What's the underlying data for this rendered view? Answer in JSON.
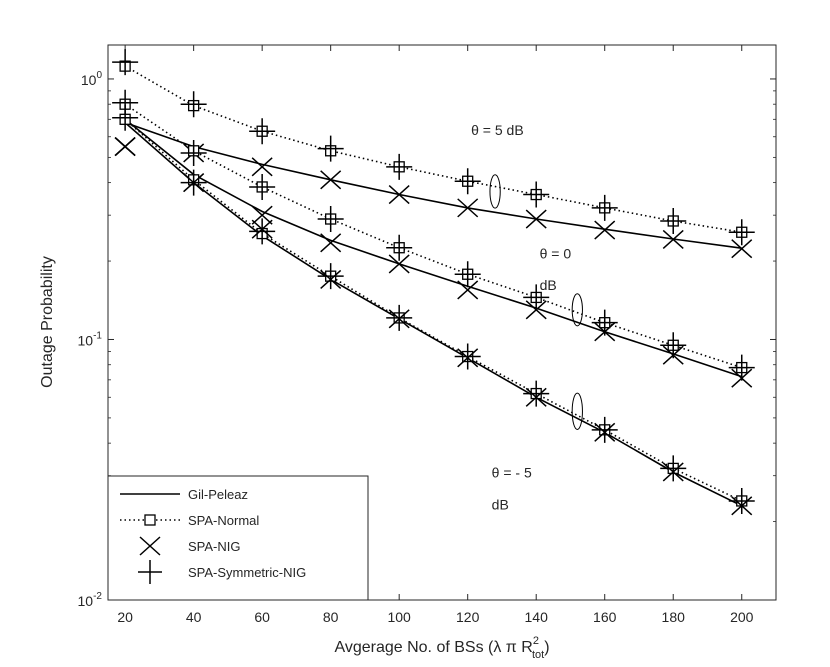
{
  "chart_data": {
    "type": "line",
    "title": "",
    "xlabel": "Avgerage No. of BSs (λ π R",
    "xlabel_sup": "2",
    "xlabel_sub": "tot",
    "xlabel_close": ")",
    "ylabel": "Outage Probability",
    "xlim": [
      15,
      210
    ],
    "ylim": [
      0.01,
      1.35
    ],
    "yscale": "log",
    "x_ticks": [
      20,
      40,
      60,
      80,
      100,
      120,
      140,
      160,
      180,
      200
    ],
    "x_tick_labels": [
      "20",
      "40",
      "60",
      "80",
      "100",
      "120",
      "140",
      "160",
      "180",
      "200"
    ],
    "y_ticks": [
      {
        "value": 1,
        "base": "10",
        "exp": "0"
      },
      {
        "value": 0.1,
        "base": "10",
        "exp": "-1"
      },
      {
        "value": 0.01,
        "base": "10",
        "exp": "-2"
      }
    ],
    "x": [
      20,
      40,
      60,
      80,
      100,
      120,
      140,
      160,
      180,
      200
    ],
    "groups": [
      {
        "name": "θ = 5 dB",
        "gil_peleaz": [
          0.68,
          0.55,
          0.47,
          0.41,
          0.36,
          0.32,
          0.29,
          0.265,
          0.243,
          0.224
        ],
        "spa_normal": [
          1.12,
          0.79,
          0.63,
          0.53,
          0.46,
          0.405,
          0.36,
          0.32,
          0.285,
          0.258
        ],
        "spa_nig": [
          0.55,
          0.52,
          0.46,
          0.41,
          0.36,
          0.32,
          0.29,
          0.263,
          0.242,
          0.223
        ],
        "spa_symmetric_nig": [
          1.16,
          0.8,
          0.63,
          0.54,
          0.46,
          0.405,
          0.36,
          0.32,
          0.285,
          0.258
        ]
      },
      {
        "name": "θ = 0 dB",
        "gil_peleaz": [
          0.7,
          0.43,
          0.31,
          0.24,
          0.195,
          0.16,
          0.132,
          0.107,
          0.088,
          0.072
        ],
        "spa_normal": [
          0.8,
          0.53,
          0.385,
          0.29,
          0.225,
          0.178,
          0.145,
          0.116,
          0.095,
          0.078
        ],
        "spa_nig": [
          0.55,
          0.4,
          0.3,
          0.235,
          0.195,
          0.155,
          0.13,
          0.107,
          0.087,
          0.071
        ],
        "spa_symmetric_nig": [
          0.81,
          0.52,
          0.385,
          0.29,
          0.225,
          0.178,
          0.145,
          0.116,
          0.095,
          0.078
        ]
      },
      {
        "name": "θ = - 5 dB",
        "gil_peleaz": [
          0.68,
          0.4,
          0.25,
          0.17,
          0.12,
          0.085,
          0.06,
          0.044,
          0.031,
          0.023
        ],
        "spa_normal": [
          0.7,
          0.41,
          0.255,
          0.175,
          0.121,
          0.086,
          0.062,
          0.045,
          0.032,
          0.024
        ],
        "spa_nig": [
          0.55,
          0.4,
          0.265,
          0.17,
          0.12,
          0.085,
          0.06,
          0.044,
          0.031,
          0.023
        ],
        "spa_symmetric_nig": [
          0.71,
          0.4,
          0.26,
          0.175,
          0.121,
          0.086,
          0.062,
          0.045,
          0.032,
          0.024
        ]
      }
    ],
    "annotations": [
      {
        "text": "θ = 5 dB",
        "x": 121,
        "y": 0.61
      },
      {
        "text": "θ = 0",
        "x": 141,
        "y": 0.205
      },
      {
        "text": "dB",
        "x": 141,
        "y": 0.155
      },
      {
        "text": "θ = - 5",
        "x": 127,
        "y": 0.0295
      },
      {
        "text": "dB",
        "x": 127,
        "y": 0.0223
      }
    ],
    "ellipses": [
      {
        "x": 128,
        "y": 0.37,
        "rx": 1.5,
        "ry_top": 0.43,
        "ry_bottom": 0.32
      },
      {
        "x": 152,
        "y": 0.13,
        "rx": 1.5,
        "ry_top": 0.15,
        "ry_bottom": 0.113
      },
      {
        "x": 152,
        "y": 0.053,
        "rx": 1.5,
        "ry_top": 0.062,
        "ry_bottom": 0.045
      }
    ],
    "legend": {
      "position": "bottom-left",
      "entries": [
        "Gil-Peleaz",
        "SPA-Normal",
        "SPA-NIG",
        "SPA-Symmetric-NIG"
      ]
    },
    "colors": {
      "line": "#000000",
      "axis": "#262626",
      "background": "#ffffff"
    }
  }
}
